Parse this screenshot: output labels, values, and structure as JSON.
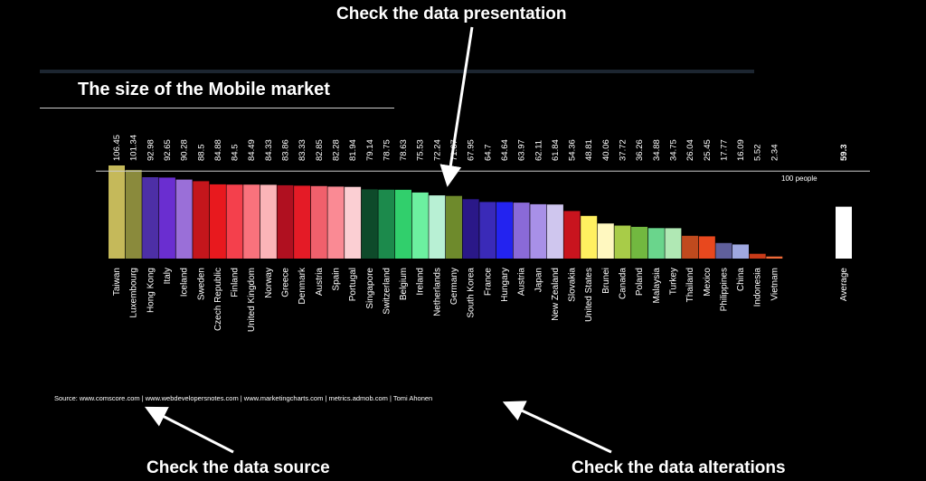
{
  "title": "The size of the Mobile market",
  "callouts": {
    "presentation": "Check the data presentation",
    "source": "Check the data source",
    "alterations": "Check the data alterations"
  },
  "source_text": "Source: www.comscore.com | www.webdevelopersnotes.com | www.marketingcharts.com | metrics.admob.com | Tomi Ahonen",
  "chart_data": {
    "type": "bar",
    "reference_line": {
      "value": 100,
      "label": "100 people"
    },
    "ylim": [
      0,
      106.45
    ],
    "categories": [
      "Taiwan",
      "Luxembourg",
      "Hong Kong",
      "Italy",
      "Iceland",
      "Sweden",
      "Czech Republic",
      "Finland",
      "United Kingdom",
      "Norway",
      "Greece",
      "Denmark",
      "Austria",
      "Spain",
      "Portugal",
      "Singapore",
      "Switzerland",
      "Belgium",
      "Ireland",
      "Netherlands",
      "Germany",
      "South Korea",
      "France",
      "Hungary",
      "Austria",
      "Japan",
      "New Zealand",
      "Slovakia",
      "United States",
      "Brunei",
      "Canada",
      "Poland",
      "Malaysia",
      "Turkey",
      "Thailand",
      "Mexico",
      "Philippines",
      "China",
      "Indonesia",
      "Vietnam",
      "Average"
    ],
    "values": [
      106.45,
      101.34,
      92.98,
      92.65,
      90.28,
      88.5,
      84.88,
      84.5,
      84.49,
      84.33,
      83.86,
      83.33,
      82.85,
      82.28,
      81.94,
      79.14,
      78.75,
      78.63,
      75.53,
      72.24,
      71.67,
      67.95,
      64.7,
      64.64,
      63.97,
      62.11,
      61.84,
      54.36,
      48.81,
      40.06,
      37.72,
      36.26,
      34.88,
      34.75,
      26.04,
      25.45,
      17.77,
      16.09,
      5.52,
      2.34,
      59.3
    ],
    "value_labels": [
      "106.45",
      "101.34",
      "92.98",
      "92.65",
      "90.28",
      "88.5",
      "84.88",
      "84.5",
      "84.49",
      "84.33",
      "83.86",
      "83.33",
      "82.85",
      "82.28",
      "81.94",
      "79.14",
      "78.75",
      "78.63",
      "75.53",
      "72.24",
      "71.67",
      "67.95",
      "64.7",
      "64.64",
      "63.97",
      "62.11",
      "61.84",
      "54.36",
      "48.81",
      "40.06",
      "37.72",
      "36.26",
      "34.88",
      "34.75",
      "26.04",
      "25.45",
      "17.77",
      "16.09",
      "5.52",
      "2.34",
      "59.3"
    ],
    "colors": [
      "#c5b95a",
      "#8a8a3c",
      "#4d2fa6",
      "#6a2ed0",
      "#9a6fd8",
      "#c4161c",
      "#e8191e",
      "#f4404c",
      "#f9727c",
      "#fbb4b8",
      "#b01020",
      "#e41b26",
      "#f0606c",
      "#fa8a94",
      "#fbcfd3",
      "#0e4a2a",
      "#1c8a4c",
      "#31cf6c",
      "#6cf0a0",
      "#b8f0d4",
      "#6e8a2c",
      "#2a1888",
      "#3a2ab8",
      "#2323f0",
      "#8a6ad8",
      "#a890e8",
      "#cfc6ee",
      "#c8141e",
      "#fff060",
      "#fff8c0",
      "#a8cc48",
      "#72b840",
      "#6ad58c",
      "#b0e8b4",
      "#c04a1e",
      "#e8481e",
      "#60609c",
      "#9fa8e0",
      "#c83a18",
      "#ef6a38",
      "#ffffff"
    ],
    "category_label_colors": {
      "United States": "#888888"
    },
    "bold_value_labels": [
      "59.3"
    ],
    "avg_index": 40
  }
}
